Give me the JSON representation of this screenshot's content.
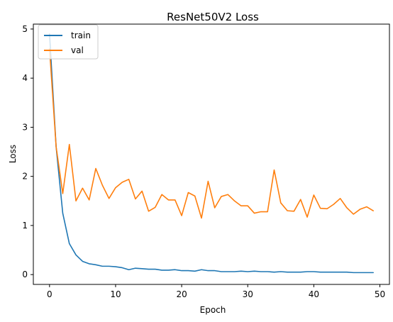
{
  "chart_data": {
    "type": "line",
    "title": "ResNet50V2 Loss",
    "xlabel": "Epoch",
    "ylabel": "Loss",
    "xlim": [
      -2.45,
      51.45
    ],
    "ylim": [
      -0.2,
      5.1
    ],
    "xticks": [
      0,
      10,
      20,
      30,
      40,
      50
    ],
    "yticks": [
      0,
      1,
      2,
      3,
      4,
      5
    ],
    "legend_position": "top-left",
    "x": [
      0,
      1,
      2,
      3,
      4,
      5,
      6,
      7,
      8,
      9,
      10,
      11,
      12,
      13,
      14,
      15,
      16,
      17,
      18,
      19,
      20,
      21,
      22,
      23,
      24,
      25,
      26,
      27,
      28,
      29,
      30,
      31,
      32,
      33,
      34,
      35,
      36,
      37,
      38,
      39,
      40,
      41,
      42,
      43,
      44,
      45,
      46,
      47,
      48,
      49
    ],
    "series": [
      {
        "name": "train",
        "color": "#1f77b4",
        "values": [
          4.9,
          2.6,
          1.25,
          0.63,
          0.4,
          0.27,
          0.22,
          0.2,
          0.17,
          0.17,
          0.16,
          0.14,
          0.1,
          0.13,
          0.12,
          0.11,
          0.11,
          0.09,
          0.09,
          0.1,
          0.08,
          0.08,
          0.07,
          0.1,
          0.08,
          0.08,
          0.06,
          0.06,
          0.06,
          0.07,
          0.06,
          0.07,
          0.06,
          0.06,
          0.05,
          0.06,
          0.05,
          0.05,
          0.05,
          0.06,
          0.06,
          0.05,
          0.05,
          0.05,
          0.05,
          0.05,
          0.04,
          0.04,
          0.04,
          0.04
        ]
      },
      {
        "name": "val",
        "color": "#ff7f0e",
        "values": [
          4.6,
          2.6,
          1.65,
          2.65,
          1.5,
          1.76,
          1.52,
          2.16,
          1.82,
          1.55,
          1.77,
          1.88,
          1.94,
          1.54,
          1.7,
          1.29,
          1.37,
          1.63,
          1.52,
          1.52,
          1.2,
          1.67,
          1.6,
          1.15,
          1.9,
          1.36,
          1.59,
          1.63,
          1.5,
          1.4,
          1.4,
          1.25,
          1.28,
          1.28,
          2.13,
          1.46,
          1.3,
          1.29,
          1.53,
          1.17,
          1.62,
          1.35,
          1.34,
          1.43,
          1.55,
          1.36,
          1.23,
          1.33,
          1.38,
          1.3
        ]
      }
    ]
  }
}
